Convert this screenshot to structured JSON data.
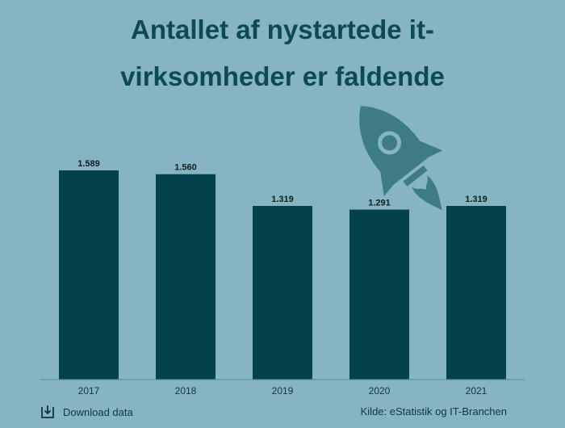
{
  "title_lines": [
    "Antallet af nystartede it-",
    "virksomheder er faldende"
  ],
  "colors": {
    "background": "#86b4c2",
    "bar": "#02424d",
    "title": "#0e4a55",
    "illustration": "#3d7b85",
    "text": "#12363d",
    "axis": "#5a8a96"
  },
  "chart_data": {
    "type": "bar",
    "categories": [
      "2017",
      "2018",
      "2019",
      "2020",
      "2021"
    ],
    "values": [
      1589,
      1560,
      1319,
      1291,
      1319
    ],
    "value_labels": [
      "1.589",
      "1.560",
      "1.319",
      "1.291",
      "1.319"
    ],
    "title": "Antallet af nystartede it-virksomheder er faldende",
    "xlabel": "",
    "ylabel": "",
    "ylim": [
      0,
      1800
    ],
    "grid": false,
    "legend": "none"
  },
  "footer": {
    "download_label": "Download data",
    "download_icon": "download-icon",
    "source": "Kilde: eStatistik og IT-Branchen"
  },
  "illustration": "falling-rocket-icon"
}
